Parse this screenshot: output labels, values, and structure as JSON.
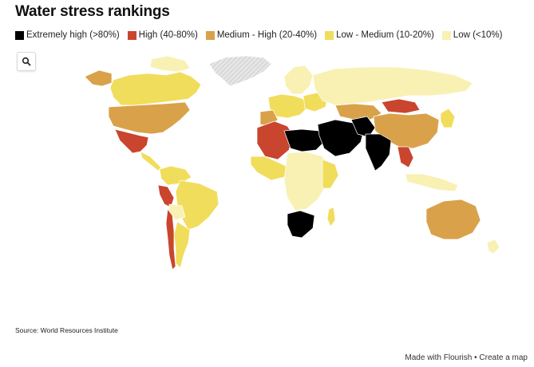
{
  "title": "Water stress rankings",
  "legend": [
    {
      "label": "Extremely high (>80%)",
      "color": "#000000"
    },
    {
      "label": "High (40-80%)",
      "color": "#c9452d"
    },
    {
      "label": "Medium - High (20-40%)",
      "color": "#d9a14a"
    },
    {
      "label": "Low - Medium (10-20%)",
      "color": "#f1dd5c"
    },
    {
      "label": "Low (<10%)",
      "color": "#f8f1b3"
    }
  ],
  "zoom_icon": "search-icon",
  "no_data_pattern": "hatched-grey",
  "source": "Source: World Resources Institute",
  "footer": {
    "made_with": "Made with Flourish",
    "separator": "•",
    "create": "Create a map"
  }
}
